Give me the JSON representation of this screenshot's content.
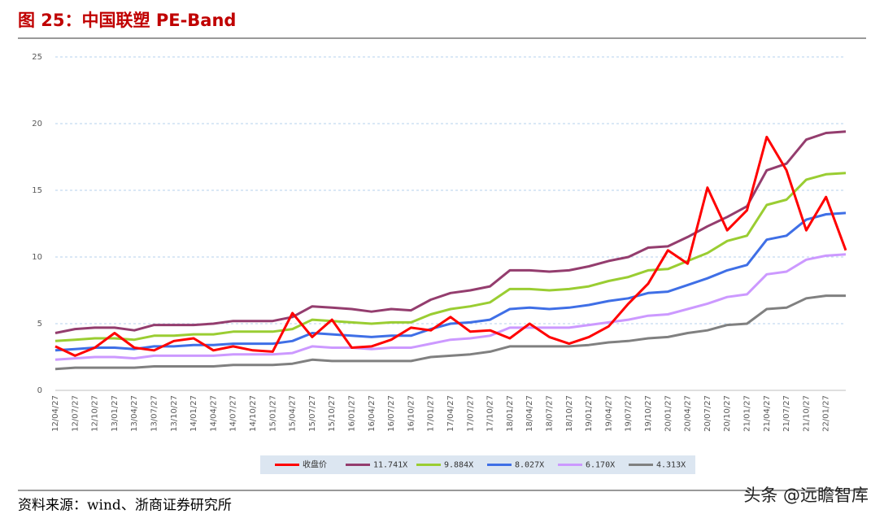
{
  "chart_data": {
    "type": "line",
    "title": "图 25：中国联塑 PE-Band",
    "source": "资料来源：wind、浙商证券研究所",
    "watermark": "头条 @远瞻智库",
    "categories": [
      "12/04/27",
      "12/07/27",
      "12/10/27",
      "13/01/27",
      "13/04/27",
      "13/07/27",
      "13/10/27",
      "14/01/27",
      "14/04/27",
      "14/07/27",
      "14/10/27",
      "15/01/27",
      "15/04/27",
      "15/07/27",
      "15/10/27",
      "16/01/27",
      "16/04/27",
      "16/07/27",
      "16/10/27",
      "17/01/27",
      "17/04/27",
      "17/07/27",
      "17/10/27",
      "18/01/27",
      "18/04/27",
      "18/07/27",
      "18/10/27",
      "19/01/27",
      "19/04/27",
      "19/07/27",
      "19/10/27",
      "20/01/27",
      "20/04/27",
      "20/07/27",
      "20/10/27",
      "21/01/27",
      "21/04/27",
      "21/07/27",
      "21/10/27",
      "22/01/27",
      null
    ],
    "series": [
      {
        "name": "收盘价",
        "color": "#ff0000",
        "width": 3,
        "values": [
          3.3,
          2.6,
          3.2,
          4.3,
          3.2,
          3.0,
          3.7,
          3.9,
          3.0,
          3.3,
          3.0,
          2.9,
          5.8,
          4.0,
          5.3,
          3.2,
          3.3,
          3.8,
          4.7,
          4.5,
          5.5,
          4.4,
          4.5,
          3.9,
          5.0,
          4.0,
          3.5,
          4.0,
          4.8,
          6.5,
          8.0,
          10.5,
          9.5,
          15.2,
          12.0,
          13.5,
          19.0,
          16.5,
          12.0,
          14.5,
          10.5
        ]
      },
      {
        "name": "11.741X",
        "color": "#943d6e",
        "width": 3,
        "values": [
          4.3,
          4.6,
          4.7,
          4.7,
          4.5,
          4.9,
          4.9,
          4.9,
          5.0,
          5.2,
          5.2,
          5.2,
          5.5,
          6.3,
          6.2,
          6.1,
          5.9,
          6.1,
          6.0,
          6.8,
          7.3,
          7.5,
          7.8,
          9.0,
          9.0,
          8.9,
          9.0,
          9.3,
          9.7,
          10.0,
          10.7,
          10.8,
          11.5,
          12.3,
          13.0,
          13.8,
          16.5,
          17.0,
          18.8,
          19.3,
          19.4
        ]
      },
      {
        "name": "9.884X",
        "color": "#9acd32",
        "width": 3,
        "values": [
          3.7,
          3.8,
          3.9,
          3.9,
          3.8,
          4.1,
          4.1,
          4.2,
          4.2,
          4.4,
          4.4,
          4.4,
          4.6,
          5.3,
          5.2,
          5.1,
          5.0,
          5.1,
          5.1,
          5.7,
          6.1,
          6.3,
          6.6,
          7.6,
          7.6,
          7.5,
          7.6,
          7.8,
          8.2,
          8.5,
          9.0,
          9.1,
          9.7,
          10.3,
          11.2,
          11.6,
          13.9,
          14.3,
          15.8,
          16.2,
          16.3
        ]
      },
      {
        "name": "8.027X",
        "color": "#3f6fe6",
        "width": 3,
        "values": [
          3.0,
          3.1,
          3.2,
          3.2,
          3.1,
          3.3,
          3.3,
          3.4,
          3.4,
          3.5,
          3.5,
          3.5,
          3.7,
          4.3,
          4.2,
          4.1,
          4.0,
          4.1,
          4.1,
          4.6,
          5.0,
          5.1,
          5.3,
          6.1,
          6.2,
          6.1,
          6.2,
          6.4,
          6.7,
          6.9,
          7.3,
          7.4,
          7.9,
          8.4,
          9.0,
          9.4,
          11.3,
          11.6,
          12.8,
          13.2,
          13.3
        ]
      },
      {
        "name": "6.170X",
        "color": "#cc99ff",
        "width": 3,
        "values": [
          2.3,
          2.4,
          2.5,
          2.5,
          2.4,
          2.6,
          2.6,
          2.6,
          2.6,
          2.7,
          2.7,
          2.7,
          2.8,
          3.3,
          3.2,
          3.2,
          3.1,
          3.2,
          3.2,
          3.5,
          3.8,
          3.9,
          4.1,
          4.7,
          4.7,
          4.7,
          4.7,
          4.9,
          5.1,
          5.3,
          5.6,
          5.7,
          6.1,
          6.5,
          7.0,
          7.2,
          8.7,
          8.9,
          9.8,
          10.1,
          10.2
        ]
      },
      {
        "name": "4.313X",
        "color": "#808080",
        "width": 3,
        "values": [
          1.6,
          1.7,
          1.7,
          1.7,
          1.7,
          1.8,
          1.8,
          1.8,
          1.8,
          1.9,
          1.9,
          1.9,
          2.0,
          2.3,
          2.2,
          2.2,
          2.2,
          2.2,
          2.2,
          2.5,
          2.6,
          2.7,
          2.9,
          3.3,
          3.3,
          3.3,
          3.3,
          3.4,
          3.6,
          3.7,
          3.9,
          4.0,
          4.3,
          4.5,
          4.9,
          5.0,
          6.1,
          6.2,
          6.9,
          7.1,
          7.1
        ]
      }
    ],
    "ylim": [
      0,
      25
    ],
    "yticks": [
      0,
      5,
      10,
      15,
      20,
      25
    ],
    "grid": true,
    "legend": "bottom"
  }
}
